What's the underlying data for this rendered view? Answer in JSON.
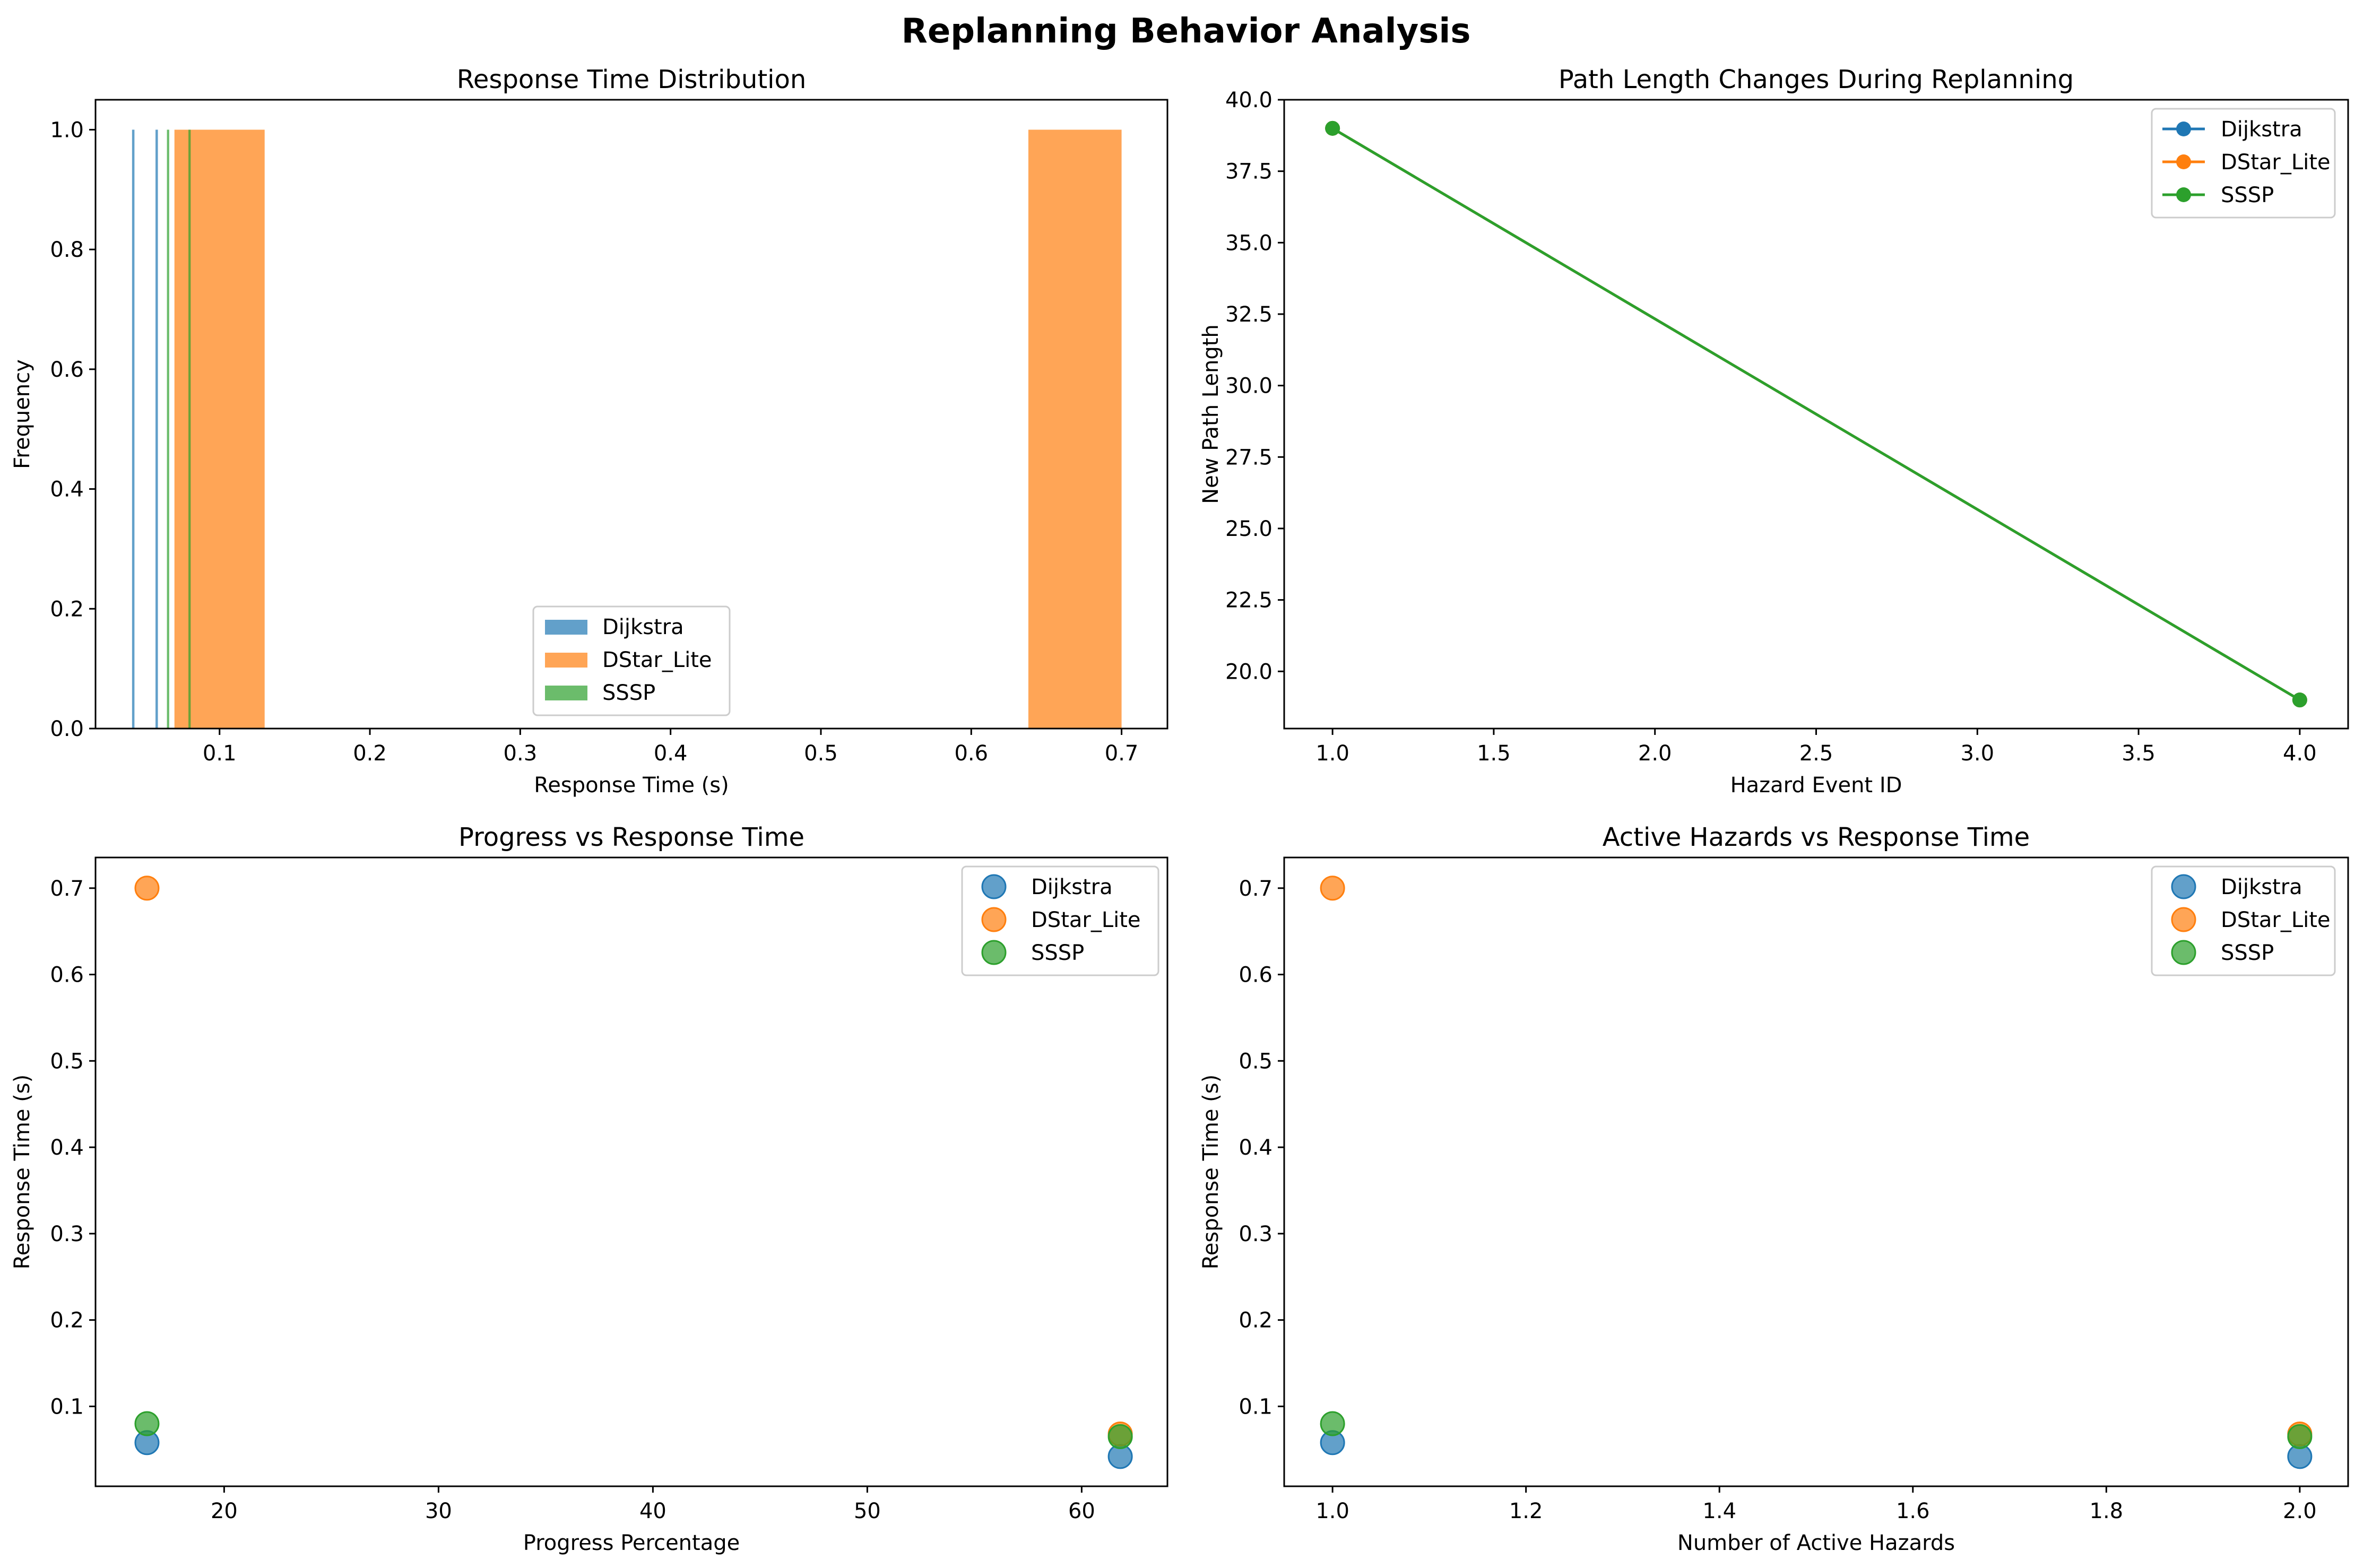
{
  "figure_title": "Replanning Behavior Analysis",
  "colors": {
    "Dijkstra": "#1f77b4",
    "DStar_Lite": "#ff7f0e",
    "SSSP": "#2ca02c"
  },
  "chart_data": [
    {
      "type": "bar",
      "subtype": "histogram",
      "title": "Response Time Distribution",
      "xlabel": "Response Time (s)",
      "ylabel": "Frequency",
      "xlim": [
        0.0175,
        0.7305
      ],
      "ylim": [
        0,
        1.05
      ],
      "xticks": [
        0.1,
        0.2,
        0.3,
        0.4,
        0.5,
        0.6,
        0.7
      ],
      "xtick_labels": [
        "0.1",
        "0.2",
        "0.3",
        "0.4",
        "0.5",
        "0.6",
        "0.7"
      ],
      "yticks": [
        0.0,
        0.2,
        0.4,
        0.6,
        0.8,
        1.0
      ],
      "ytick_labels": [
        "0.0",
        "0.2",
        "0.4",
        "0.6",
        "0.8",
        "1.0"
      ],
      "legend": "lower-center",
      "alpha": 0.7,
      "series": [
        {
          "name": "Dijkstra",
          "bins": [
            [
              0.0418,
              0.0434,
              1
            ],
            [
              0.0574,
              0.059,
              1
            ]
          ]
        },
        {
          "name": "DStar_Lite",
          "bins": [
            [
              0.07,
              0.13,
              1
            ],
            [
              0.638,
              0.7,
              1
            ]
          ]
        },
        {
          "name": "SSSP",
          "bins": [
            [
              0.065,
              0.0665,
              1
            ],
            [
              0.0793,
              0.0808,
              1
            ]
          ]
        }
      ]
    },
    {
      "type": "line",
      "title": "Path Length Changes During Replanning",
      "xlabel": "Hazard Event ID",
      "ylabel": "New Path Length",
      "xlim": [
        0.85,
        4.15
      ],
      "ylim": [
        18,
        40
      ],
      "xticks": [
        1.0,
        1.5,
        2.0,
        2.5,
        3.0,
        3.5,
        4.0
      ],
      "xtick_labels": [
        "1.0",
        "1.5",
        "2.0",
        "2.5",
        "3.0",
        "3.5",
        "4.0"
      ],
      "yticks": [
        20.0,
        22.5,
        25.0,
        27.5,
        30.0,
        32.5,
        35.0,
        37.5,
        40.0
      ],
      "ytick_labels": [
        "20.0",
        "22.5",
        "25.0",
        "27.5",
        "30.0",
        "32.5",
        "35.0",
        "37.5",
        "40.0"
      ],
      "legend": "top-right",
      "series": [
        {
          "name": "Dijkstra",
          "x": [
            1,
            4
          ],
          "y": [
            39,
            19
          ]
        },
        {
          "name": "DStar_Lite",
          "x": [
            1,
            4
          ],
          "y": [
            39,
            19
          ]
        },
        {
          "name": "SSSP",
          "x": [
            1,
            4
          ],
          "y": [
            39,
            19
          ]
        }
      ]
    },
    {
      "type": "scatter",
      "title": "Progress vs Response Time",
      "xlabel": "Progress Percentage",
      "ylabel": "Response Time (s)",
      "xlim": [
        14.0,
        64.0
      ],
      "ylim": [
        0.0075,
        0.7355
      ],
      "xticks": [
        20,
        30,
        40,
        50,
        60
      ],
      "xtick_labels": [
        "20",
        "30",
        "40",
        "50",
        "60"
      ],
      "yticks": [
        0.1,
        0.2,
        0.3,
        0.4,
        0.5,
        0.6,
        0.7
      ],
      "ytick_labels": [
        "0.1",
        "0.2",
        "0.3",
        "0.4",
        "0.5",
        "0.6",
        "0.7"
      ],
      "legend": "top-right",
      "alpha": 0.7,
      "series": [
        {
          "name": "Dijkstra",
          "x": [
            16.4,
            61.8
          ],
          "y": [
            0.058,
            0.042
          ]
        },
        {
          "name": "DStar_Lite",
          "x": [
            16.4,
            61.8
          ],
          "y": [
            0.7,
            0.068
          ]
        },
        {
          "name": "SSSP",
          "x": [
            16.4,
            61.8
          ],
          "y": [
            0.08,
            0.065
          ]
        }
      ]
    },
    {
      "type": "scatter",
      "title": "Active Hazards vs Response Time",
      "xlabel": "Number of Active Hazards",
      "ylabel": "Response Time (s)",
      "xlim": [
        0.95,
        2.05
      ],
      "ylim": [
        0.0075,
        0.7355
      ],
      "xticks": [
        1.0,
        1.2,
        1.4,
        1.6,
        1.8,
        2.0
      ],
      "xtick_labels": [
        "1.0",
        "1.2",
        "1.4",
        "1.6",
        "1.8",
        "2.0"
      ],
      "yticks": [
        0.1,
        0.2,
        0.3,
        0.4,
        0.5,
        0.6,
        0.7
      ],
      "ytick_labels": [
        "0.1",
        "0.2",
        "0.3",
        "0.4",
        "0.5",
        "0.6",
        "0.7"
      ],
      "legend": "top-right",
      "alpha": 0.7,
      "series": [
        {
          "name": "Dijkstra",
          "x": [
            1,
            2
          ],
          "y": [
            0.058,
            0.042
          ]
        },
        {
          "name": "DStar_Lite",
          "x": [
            1,
            2
          ],
          "y": [
            0.7,
            0.068
          ]
        },
        {
          "name": "SSSP",
          "x": [
            1,
            2
          ],
          "y": [
            0.08,
            0.065
          ]
        }
      ]
    }
  ]
}
